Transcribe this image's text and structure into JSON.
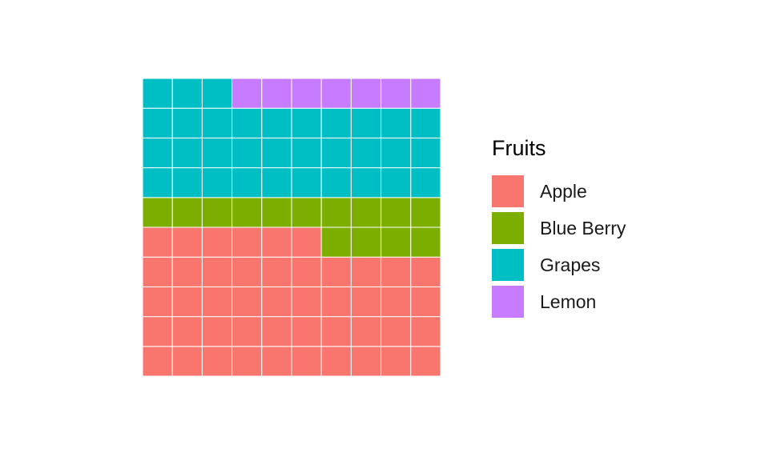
{
  "chart_data": {
    "type": "waffle",
    "grid": {
      "rows": 10,
      "cols": 10
    },
    "fill_order": "rows-bottom-to-top",
    "legend_title": "Fruits",
    "legend_position": "right",
    "series": [
      {
        "name": "Apple",
        "value": 46,
        "color": "#F8766D"
      },
      {
        "name": "Blue Berry",
        "value": 14,
        "color": "#7CAE00"
      },
      {
        "name": "Grapes",
        "value": 33,
        "color": "#00BFC4"
      },
      {
        "name": "Lemon",
        "value": 7,
        "color": "#C77CFF"
      }
    ]
  }
}
